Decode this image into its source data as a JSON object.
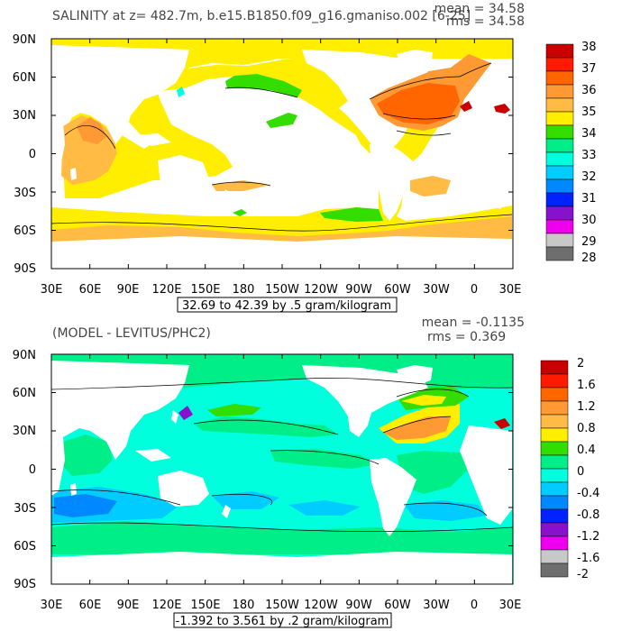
{
  "top_panel": {
    "title": "SALINITY at z= 482.7m, b.e15.B1850.f09_g16.gmaniso.002 [6-25]",
    "mean_text": "mean = 34.58",
    "rms_text": "rms = 34.58",
    "range_text": "32.69 to 42.39 by .5 gram/kilogram",
    "lat_labels": [
      "90N",
      "60N",
      "30N",
      "0",
      "30S",
      "60S",
      "90S"
    ],
    "lon_labels": [
      "30E",
      "60E",
      "90E",
      "120E",
      "150E",
      "180",
      "150W",
      "120W",
      "90W",
      "60W",
      "30W",
      "0",
      "30E"
    ],
    "colorbar_labels": [
      "38",
      "37",
      "36",
      "35",
      "34",
      "33",
      "32",
      "31",
      "30",
      "29",
      "28"
    ],
    "colorbar_colors": [
      "#c80000",
      "#ff1a00",
      "#ff6600",
      "#ff9933",
      "#ffbb44",
      "#ffee00",
      "#33dd00",
      "#00ee88",
      "#00ffdd",
      "#00ccff",
      "#0088ff",
      "#0022ff",
      "#8811cc",
      "#ee00ee",
      "#c8c8c8",
      "#6e6e6e"
    ]
  },
  "bottom_panel": {
    "title": "(MODEL - LEVITUS/PHC2)",
    "mean_text": "mean = -0.1135",
    "rms_text": "rms = 0.369",
    "range_text": "-1.392 to 3.561 by .2 gram/kilogram",
    "lat_labels": [
      "90N",
      "60N",
      "30N",
      "0",
      "30S",
      "60S",
      "90S"
    ],
    "lon_labels": [
      "30E",
      "60E",
      "90E",
      "120E",
      "150E",
      "180",
      "150W",
      "120W",
      "90W",
      "60W",
      "30W",
      "0",
      "30E"
    ],
    "colorbar_labels": [
      "2",
      "1.6",
      "1.2",
      "0.8",
      "0.4",
      "0",
      "-0.4",
      "-0.8",
      "-1.2",
      "-1.6",
      "-2"
    ],
    "colorbar_colors": [
      "#c80000",
      "#ff1a00",
      "#ff6600",
      "#ff9933",
      "#ffbb44",
      "#ffee00",
      "#33dd00",
      "#00ee88",
      "#00ffdd",
      "#00ccff",
      "#0088ff",
      "#0022ff",
      "#8811cc",
      "#ee00ee",
      "#c8c8c8",
      "#6e6e6e"
    ]
  },
  "colors": {
    "sal_yellow": "#ffee00",
    "sal_light_orange": "#ffbb44",
    "sal_orange": "#ff9933",
    "sal_dark_orange": "#ff6600",
    "sal_green": "#33dd00",
    "sal_cyan": "#00ffdd",
    "sal_red": "#c80000",
    "diff_cyan": "#00ffdd",
    "diff_green": "#00ee88",
    "diff_bright_green": "#33dd00",
    "diff_blue": "#00ccff",
    "diff_blue2": "#0088ff",
    "diff_yellow": "#ffee00",
    "diff_orange": "#ff9933",
    "diff_purple": "#8811cc"
  }
}
